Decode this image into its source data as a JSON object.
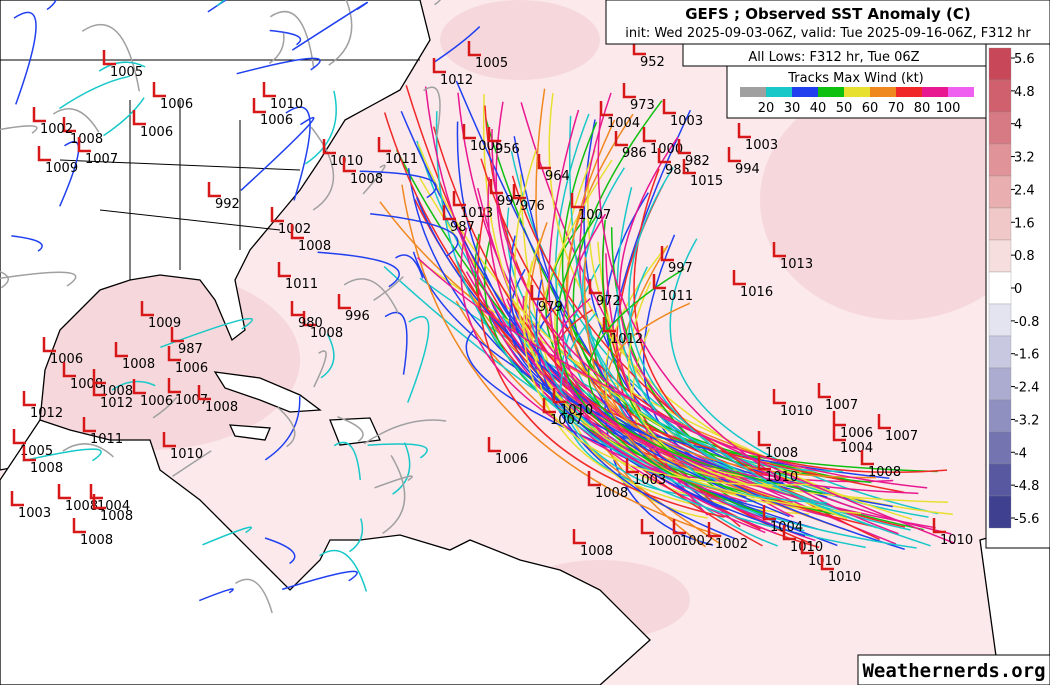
{
  "header": {
    "title": "GEFS ; Observed SST Anomaly (C)",
    "subtitle": "init: Wed 2025-09-03-06Z, valid: Tue 2025-09-16-06Z, F312 hr",
    "lows_title": "All Lows: F312 hr, Tue 06Z"
  },
  "wind_scale": {
    "title": "Tracks Max Wind (kt)",
    "levels": [
      20,
      30,
      40,
      50,
      60,
      70,
      80,
      100
    ],
    "colors": [
      "#a0a0a0",
      "#18c8c8",
      "#2040f0",
      "#10c010",
      "#e8e030",
      "#f08820",
      "#f02828",
      "#e81890",
      "#f060f0"
    ]
  },
  "colorbar": {
    "ticks": [
      5.6,
      4.8,
      4,
      3.2,
      2.4,
      1.6,
      0.8,
      0,
      -0.8,
      -1.6,
      -2.4,
      -3.2,
      -4,
      -4.8,
      -5.6
    ],
    "colors": [
      "#c8485a",
      "#d0606e",
      "#d87a84",
      "#e0949a",
      "#e8aeb0",
      "#f0c8c8",
      "#f6dede",
      "#ffffff",
      "#e4e4f0",
      "#c8c8e0",
      "#acacd0",
      "#9090c0",
      "#7474b0",
      "#5858a0",
      "#404090"
    ]
  },
  "lows": [
    1005,
    1006,
    1006,
    1008,
    1002,
    1007,
    1009,
    1010,
    1006,
    1010,
    1011,
    1008,
    992,
    1002,
    1008,
    1011,
    996,
    1008,
    980,
    1009,
    987,
    1006,
    1008,
    1006,
    1008,
    1008,
    1012,
    1006,
    1007,
    1008,
    1012,
    1011,
    1010,
    1005,
    1008,
    1003,
    1008,
    1004,
    1008,
    1008,
    1012,
    1005,
    1005,
    956,
    964,
    997,
    976,
    987,
    1013,
    1007,
    979,
    972,
    1012,
    1011,
    997,
    1016,
    1013,
    973,
    1004,
    1003,
    986,
    1000,
    982,
    985,
    1015,
    994,
    1003,
    1010,
    1007,
    1006,
    1008,
    1003,
    1010,
    1007,
    1006,
    1004,
    1007,
    1008,
    1008,
    1010,
    1008,
    1000,
    1002,
    1002,
    1004,
    1010,
    1010,
    1010,
    1010,
    952
  ],
  "footer": "Weathernerds.org"
}
